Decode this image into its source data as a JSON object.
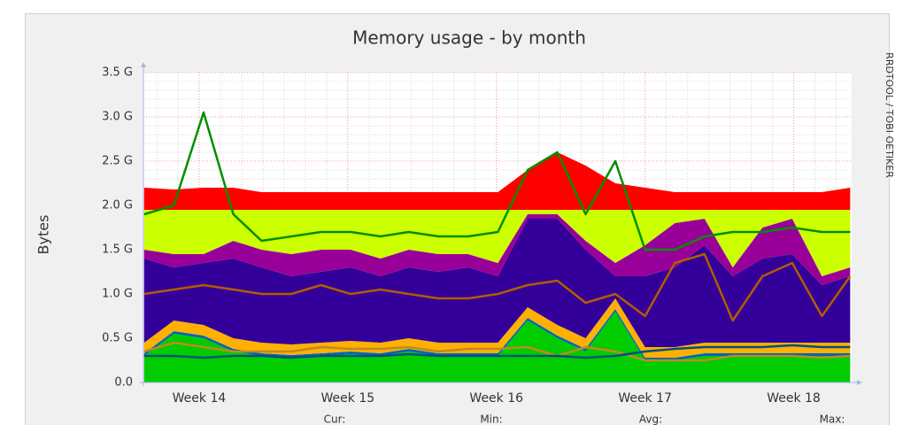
{
  "chart_data": {
    "type": "area",
    "title": "Memory usage - by month",
    "ylabel": "Bytes",
    "watermark": "RRDTOOL / TOBI OETIKER",
    "legend_headers": [
      "Cur:",
      "Min:",
      "Avg:",
      "Max:"
    ],
    "x": [
      13.63,
      13.83,
      14.03,
      14.23,
      14.42,
      14.62,
      14.82,
      15.02,
      15.22,
      15.41,
      15.61,
      15.81,
      16.01,
      16.21,
      16.41,
      16.6,
      16.8,
      17.0,
      17.2,
      17.4,
      17.59,
      17.79,
      17.99,
      18.19,
      18.38
    ],
    "xlim": [
      13.625,
      18.39
    ],
    "xticks": [
      {
        "value": 14,
        "label": "Week 14"
      },
      {
        "value": 15,
        "label": "Week 15"
      },
      {
        "value": 16,
        "label": "Week 16"
      },
      {
        "value": 17,
        "label": "Week 17"
      },
      {
        "value": 18,
        "label": "Week 18"
      }
    ],
    "ylim": [
      0,
      3.5
    ],
    "yticks": [
      {
        "value": 0,
        "label": "0.0"
      },
      {
        "value": 0.5,
        "label": "0.5 G"
      },
      {
        "value": 1,
        "label": "1.0 G"
      },
      {
        "value": 1.5,
        "label": "1.5 G"
      },
      {
        "value": 2,
        "label": "2.0 G"
      },
      {
        "value": 2.5,
        "label": "2.5 G"
      },
      {
        "value": 3,
        "label": "3.0 G"
      },
      {
        "value": 3.5,
        "label": "3.5 G"
      }
    ],
    "grid": true,
    "stacked": true,
    "series": [
      {
        "kind": "area",
        "color": "#00cc00",
        "values": [
          0.3,
          0.55,
          0.5,
          0.35,
          0.3,
          0.28,
          0.3,
          0.32,
          0.3,
          0.35,
          0.3,
          0.3,
          0.3,
          0.7,
          0.5,
          0.35,
          0.8,
          0.25,
          0.25,
          0.3,
          0.3,
          0.3,
          0.3,
          0.3,
          0.3
        ]
      },
      {
        "kind": "area",
        "color": "#0066b3",
        "values": [
          0.03,
          0.03,
          0.03,
          0.03,
          0.03,
          0.03,
          0.03,
          0.03,
          0.03,
          0.03,
          0.03,
          0.03,
          0.03,
          0.03,
          0.03,
          0.03,
          0.03,
          0.03,
          0.03,
          0.03,
          0.03,
          0.03,
          0.03,
          0.03,
          0.03
        ]
      },
      {
        "kind": "area",
        "color": "#ffb000",
        "values": [
          0.12,
          0.12,
          0.12,
          0.12,
          0.12,
          0.12,
          0.12,
          0.12,
          0.12,
          0.12,
          0.12,
          0.12,
          0.12,
          0.12,
          0.12,
          0.12,
          0.12,
          0.12,
          0.12,
          0.12,
          0.12,
          0.12,
          0.12,
          0.12,
          0.12
        ]
      },
      {
        "kind": "area",
        "color": "#330099",
        "values": [
          0.95,
          0.6,
          0.7,
          0.9,
          0.85,
          0.77,
          0.8,
          0.83,
          0.75,
          0.8,
          0.8,
          0.85,
          0.75,
          1.0,
          1.2,
          1.0,
          0.25,
          0.8,
          0.9,
          1.1,
          0.75,
          0.95,
          1.0,
          0.65,
          0.75
        ]
      },
      {
        "kind": "area",
        "color": "#990099",
        "values": [
          0.1,
          0.15,
          0.1,
          0.2,
          0.2,
          0.25,
          0.25,
          0.2,
          0.2,
          0.2,
          0.2,
          0.15,
          0.15,
          0.05,
          0.05,
          0.1,
          0.15,
          0.35,
          0.5,
          0.3,
          0.1,
          0.35,
          0.4,
          0.1,
          0.1
        ]
      },
      {
        "kind": "area",
        "color": "#ccff00",
        "values": [
          0.45,
          0.5,
          0.5,
          0.35,
          0.45,
          0.5,
          0.45,
          0.45,
          0.55,
          0.45,
          0.5,
          0.5,
          0.6,
          0.05,
          0.05,
          0.35,
          0.6,
          0.4,
          0.15,
          0.1,
          0.65,
          0.2,
          0.1,
          0.75,
          0.65
        ]
      },
      {
        "kind": "area",
        "color": "#ff0000",
        "values": [
          0.25,
          0.23,
          0.25,
          0.25,
          0.2,
          0.2,
          0.2,
          0.2,
          0.2,
          0.2,
          0.2,
          0.2,
          0.2,
          0.45,
          0.65,
          0.5,
          0.3,
          0.25,
          0.2,
          0.2,
          0.2,
          0.2,
          0.2,
          0.2,
          0.25
        ]
      },
      {
        "kind": "line",
        "color": "#008f00",
        "values": [
          1.9,
          2.0,
          3.05,
          1.9,
          1.6,
          1.65,
          1.7,
          1.7,
          1.65,
          1.7,
          1.65,
          1.65,
          1.7,
          2.4,
          2.6,
          1.9,
          2.5,
          1.5,
          1.5,
          1.65,
          1.7,
          1.7,
          1.75,
          1.7,
          1.7
        ]
      },
      {
        "kind": "line",
        "color": "#b25c00",
        "values": [
          1.0,
          1.05,
          1.1,
          1.05,
          1.0,
          1.0,
          1.1,
          1.0,
          1.05,
          1.0,
          0.95,
          0.95,
          1.0,
          1.1,
          1.15,
          0.9,
          1.0,
          0.75,
          1.35,
          1.45,
          0.7,
          1.2,
          1.35,
          0.75,
          1.2
        ]
      },
      {
        "kind": "line",
        "color": "#c08a20",
        "values": [
          0.35,
          0.45,
          0.4,
          0.35,
          0.35,
          0.35,
          0.4,
          0.38,
          0.38,
          0.4,
          0.35,
          0.38,
          0.38,
          0.4,
          0.3,
          0.4,
          0.35,
          0.25,
          0.25,
          0.25,
          0.3,
          0.3,
          0.3,
          0.28,
          0.3
        ]
      },
      {
        "kind": "line",
        "color": "#004f80",
        "values": [
          0.3,
          0.3,
          0.28,
          0.3,
          0.3,
          0.28,
          0.3,
          0.3,
          0.3,
          0.32,
          0.3,
          0.3,
          0.3,
          0.3,
          0.3,
          0.28,
          0.3,
          0.35,
          0.38,
          0.4,
          0.4,
          0.4,
          0.42,
          0.4,
          0.4
        ]
      }
    ]
  }
}
